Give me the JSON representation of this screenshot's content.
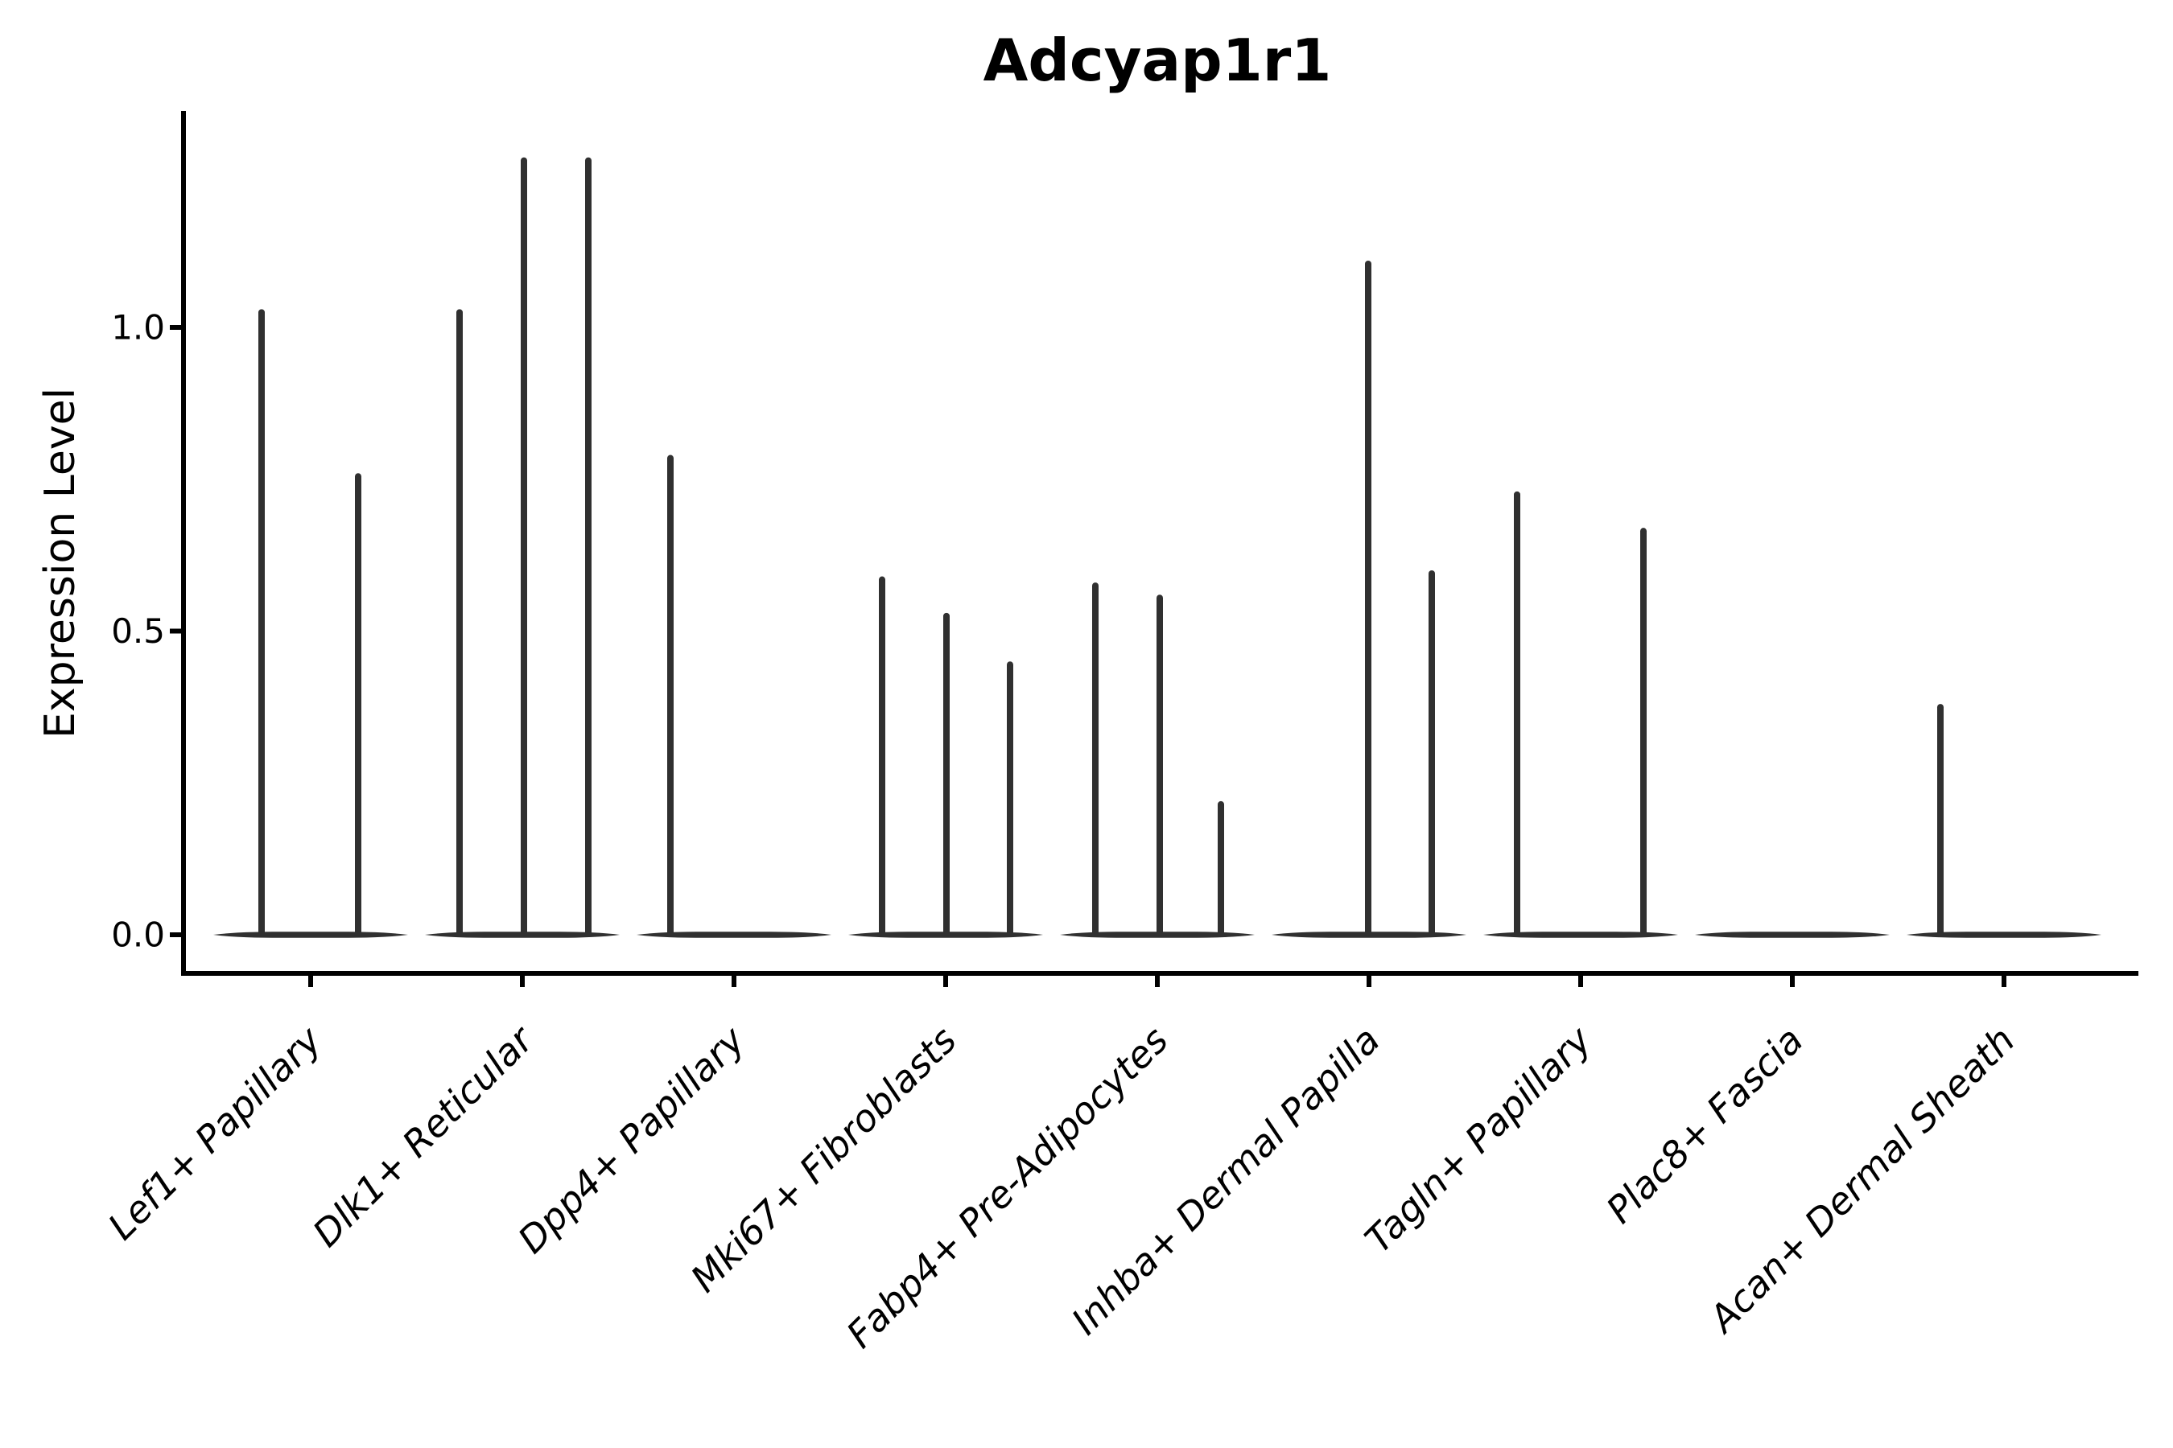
{
  "chart_data": {
    "type": "violin",
    "title": "Adcyap1r1",
    "ylabel": "Expression Level",
    "xlabel": "",
    "grid": false,
    "legend": "none",
    "background": "#ffffff",
    "y_ticks": [
      {
        "label": "0.0",
        "value": 0.0
      },
      {
        "label": "0.5",
        "value": 0.5
      },
      {
        "label": "1.0",
        "value": 1.0
      }
    ],
    "ylim": [
      -0.065,
      1.35
    ],
    "categories": [
      "Lef1+ Papillary",
      "Dlk1+ Reticular",
      "Dpp4+ Papillary",
      "Mki67+ Fibroblasts",
      "Fabp4+ Pre-Adipocytes",
      "Inhba+ Dermal Papilla",
      "Tagln+ Papillary",
      "Plac8+ Fascia",
      "Acan+ Dermal Sheath"
    ],
    "description": "Each category shows thin violins: a flat density body at expression 0 with sparse high-expression tails rendered as vertical spikes. Spike offsets are horizontal px offsets from the category center; max is the top expression value of each spike.",
    "violins": [
      {
        "category": "Lef1+ Papillary",
        "spikes": [
          {
            "offset": -61,
            "max": 1.03
          },
          {
            "offset": 59,
            "max": 0.76
          }
        ]
      },
      {
        "category": "Dlk1+ Reticular",
        "spikes": [
          {
            "offset": -78,
            "max": 1.03
          },
          {
            "offset": 2,
            "max": 1.28
          },
          {
            "offset": 82,
            "max": 1.28
          }
        ]
      },
      {
        "category": "Dpp4+ Papillary",
        "spikes": [
          {
            "offset": -79,
            "max": 0.79
          }
        ]
      },
      {
        "category": "Mki67+ Fibroblasts",
        "spikes": [
          {
            "offset": -79,
            "max": 0.59
          },
          {
            "offset": 1,
            "max": 0.53
          },
          {
            "offset": 80,
            "max": 0.45
          }
        ]
      },
      {
        "category": "Fabp4+ Pre-Adipocytes",
        "spikes": [
          {
            "offset": -77,
            "max": 0.58
          },
          {
            "offset": 3,
            "max": 0.56
          },
          {
            "offset": 79,
            "max": 0.22
          }
        ]
      },
      {
        "category": "Inhba+ Dermal Papilla",
        "spikes": [
          {
            "offset": -1,
            "max": 1.11
          },
          {
            "offset": 78,
            "max": 0.6
          }
        ]
      },
      {
        "category": "Tagln+ Papillary",
        "spikes": [
          {
            "offset": -79,
            "max": 0.73
          },
          {
            "offset": 78,
            "max": 0.67
          }
        ]
      },
      {
        "category": "Plac8+ Fascia",
        "spikes": []
      },
      {
        "category": "Acan+ Dermal Sheath",
        "spikes": [
          {
            "offset": -79,
            "max": 0.38
          }
        ]
      }
    ]
  },
  "style": {
    "violin_color": "#303030",
    "axis_color": "#000000",
    "text_color": "#000000",
    "title_bold": true,
    "x_label_rotation_deg": 45,
    "x_labels_italic": true
  }
}
